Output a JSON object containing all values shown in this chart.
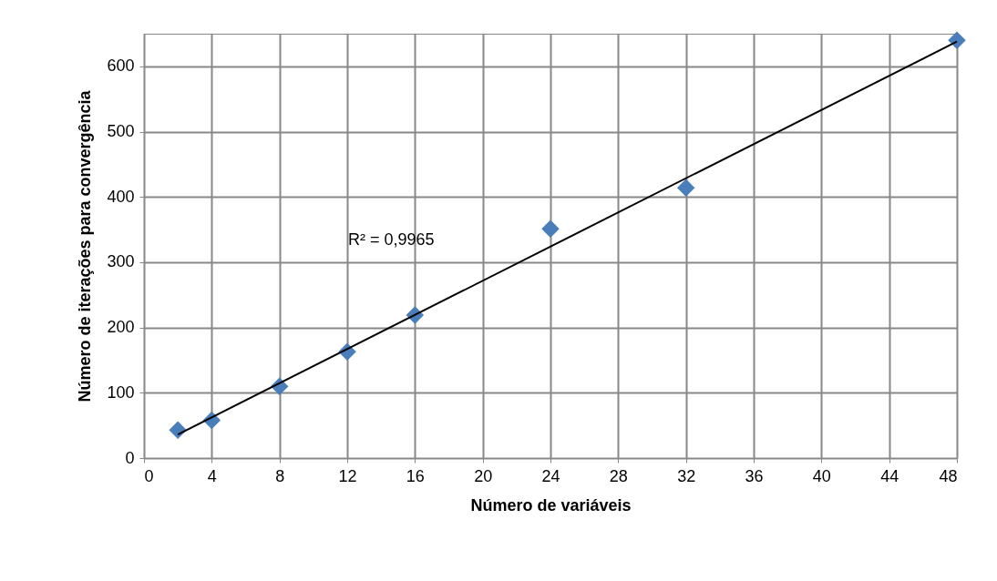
{
  "chart_data": {
    "type": "scatter",
    "xlabel": "Número de variáveis",
    "ylabel": "Número de iterações para convergência",
    "x": [
      2,
      4,
      8,
      12,
      16,
      24,
      32,
      48
    ],
    "series": [
      {
        "type": "scatter",
        "color": "#4a7ebb",
        "marker": "diamond",
        "values": [
          43,
          58,
          110,
          163,
          219,
          351,
          414,
          640
        ]
      },
      {
        "type": "line",
        "color": "#000000",
        "x": [
          2,
          48
        ],
        "values": [
          36,
          638
        ]
      }
    ],
    "xlim": [
      0,
      48
    ],
    "xticks": [
      0,
      4,
      8,
      12,
      16,
      20,
      24,
      28,
      32,
      36,
      40,
      44,
      48
    ],
    "ylim": [
      0,
      650
    ],
    "yticks": [
      0,
      100,
      200,
      300,
      400,
      500,
      600
    ],
    "grid": true,
    "annotations": [
      "R² = 0,9965"
    ]
  }
}
